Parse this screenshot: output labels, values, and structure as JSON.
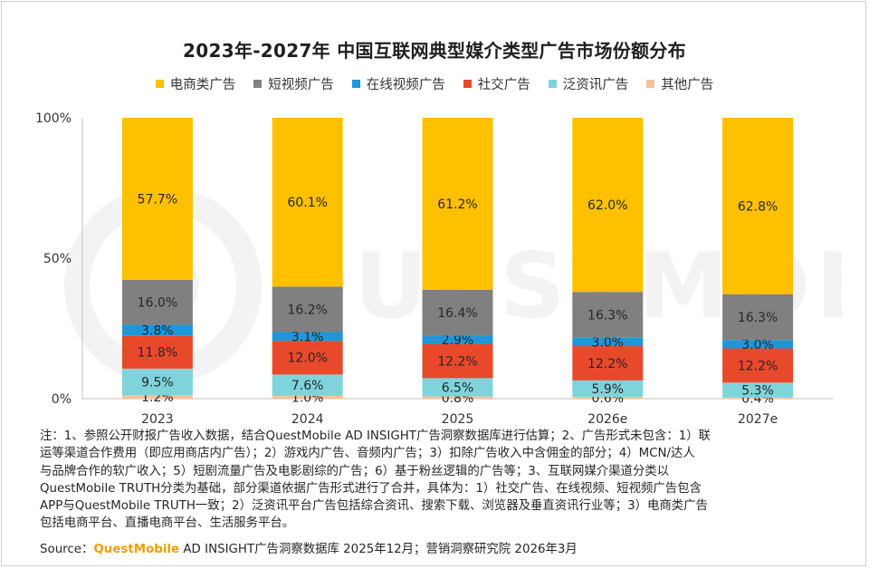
{
  "title": "2023年-2027年 中国互联网典型媒介类型广告市场份额分布",
  "legend": [
    {
      "label": "电商类广告",
      "color": "#FFC000"
    },
    {
      "label": "短视频广告",
      "color": "#808080"
    },
    {
      "label": "在线视频广告",
      "color": "#1F96D9"
    },
    {
      "label": "社交广告",
      "color": "#E8492B"
    },
    {
      "label": "泛资讯广告",
      "color": "#7FD4DC"
    },
    {
      "label": "其他广告",
      "color": "#F5C299"
    }
  ],
  "note": "注：1、参照公开财报广告收入数据，结合QuestMobile AD INSIGHT广告洞察数据库进行估算；2、广告形式未包含：1）联\n运等渠道合作费用（即应用商店内广告）；2）游戏内广告、音频内广告；3）扣除广告收入中含佣金的部分；4）MCN/达人\n与品牌合作的软广收入；5）短剧流量广告及电影剧综的广告；6）基于粉丝逻辑的广告等；3、互联网媒介渠道分类以\nQuestMobile TRUTH分类为基础，部分渠道依据广告形式进行了合并，具体为：1）社交广告、在线视频、短视频广告包含\nAPP与QuestMobile TRUTH一致；2）泛资讯平台广告包括综合资讯、搜索下载、浏览器及垂直资讯行业等；3）电商类广告\n包括电商平台、直播电商平台、生活服务平台。",
  "source": {
    "prefix": "Source：",
    "brand": "QuestMobile",
    "suffix": " AD INSIGHT广告洞察数据库 2025年12月；营销洞察研究院 2026年3月"
  },
  "watermark": "QUESTMOBILE",
  "chart_data": {
    "type": "bar",
    "stacked": true,
    "title": "2023年-2027年 中国互联网典型媒介类型广告市场份额分布",
    "categories": [
      "2023",
      "2024",
      "2025",
      "2026e",
      "2027e"
    ],
    "y_ticks": [
      "100%",
      "50%",
      "0%"
    ],
    "ylim": [
      0,
      100
    ],
    "legend_position": "top",
    "series": [
      {
        "name": "其他广告",
        "color": "#F5C299",
        "values": [
          1.2,
          1.0,
          0.8,
          0.6,
          0.4
        ],
        "labels": [
          "1.2%",
          "1.0%",
          "0.8%",
          "0.6%",
          "0.4%"
        ]
      },
      {
        "name": "泛资讯广告",
        "color": "#7FD4DC",
        "values": [
          9.5,
          7.6,
          6.5,
          5.9,
          5.3
        ],
        "labels": [
          "9.5%",
          "7.6%",
          "6.5%",
          "5.9%",
          "5.3%"
        ]
      },
      {
        "name": "社交广告",
        "color": "#E8492B",
        "values": [
          11.8,
          12.0,
          12.2,
          12.2,
          12.2
        ],
        "labels": [
          "11.8%",
          "12.0%",
          "12.2%",
          "12.2%",
          "12.2%"
        ]
      },
      {
        "name": "在线视频广告",
        "color": "#1F96D9",
        "values": [
          3.8,
          3.1,
          2.9,
          3.0,
          3.0
        ],
        "labels": [
          "3.8%",
          "3.1%",
          "2.9%",
          "3.0%",
          "3.0%"
        ]
      },
      {
        "name": "短视频广告",
        "color": "#808080",
        "values": [
          16.0,
          16.2,
          16.4,
          16.3,
          16.3
        ],
        "labels": [
          "16.0%",
          "16.2%",
          "16.4%",
          "16.3%",
          "16.3%"
        ]
      },
      {
        "name": "电商类广告",
        "color": "#FFC000",
        "values": [
          57.7,
          60.1,
          61.2,
          62.0,
          62.8
        ],
        "labels": [
          "57.7%",
          "60.1%",
          "61.2%",
          "62.0%",
          "62.8%"
        ]
      }
    ]
  }
}
